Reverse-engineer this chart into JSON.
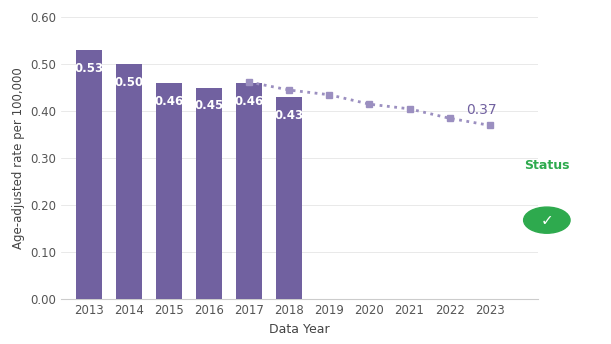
{
  "bar_years": [
    2013,
    2014,
    2015,
    2016,
    2017,
    2018
  ],
  "bar_values": [
    0.53,
    0.5,
    0.46,
    0.45,
    0.46,
    0.43
  ],
  "bar_color": "#7161a0",
  "bar_labels": [
    "0.53",
    "0.50",
    "0.46",
    "0.45",
    "0.46",
    "0.43"
  ],
  "dot_years": [
    2017,
    2018,
    2019,
    2020,
    2021,
    2022,
    2023
  ],
  "dot_values": [
    0.462,
    0.445,
    0.435,
    0.415,
    0.405,
    0.385,
    0.37
  ],
  "dot_color": "#9b8fc0",
  "dot_last_value": 0.37,
  "dot_last_year": 2023,
  "all_years": [
    2013,
    2014,
    2015,
    2016,
    2017,
    2018,
    2019,
    2020,
    2021,
    2022,
    2023
  ],
  "ylim": [
    0.0,
    0.6
  ],
  "yticks": [
    0.0,
    0.1,
    0.2,
    0.3,
    0.4,
    0.5,
    0.6
  ],
  "ylabel": "Age-adjusted rate per 100,000",
  "xlabel": "Data Year",
  "status_label": "Status",
  "status_color": "#2eaa4e",
  "background_color": "#ffffff",
  "bar_label_color": "#ffffff",
  "bar_label_fontsize": 8.5,
  "last_label_color": "#7161a0",
  "last_label_fontsize": 10
}
